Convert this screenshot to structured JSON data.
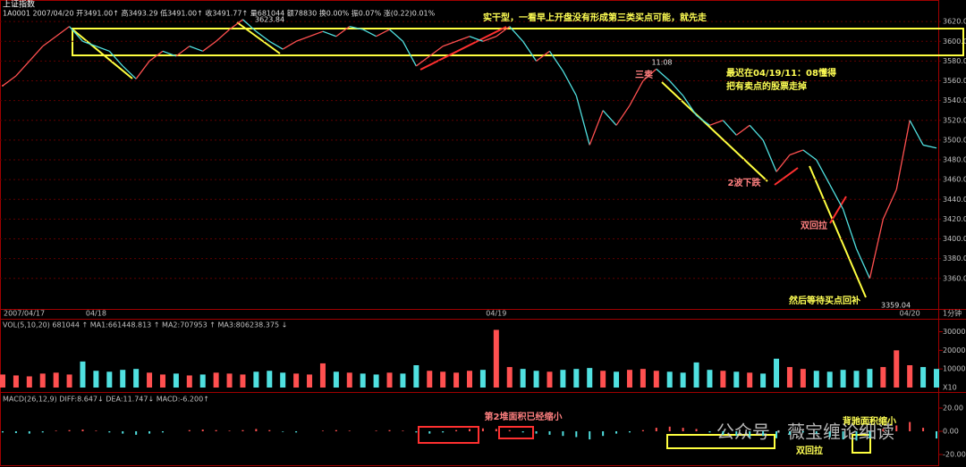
{
  "header": {
    "title": "上证指数",
    "quote": "1A0001 2007/04/20 开3491.00↑ 高3493.29 低3491.00↑ 收3491.77↑ 量681044 额78830 换0.00% 振0.07% 涨(0.22)0.01%"
  },
  "chart_data": [
    {
      "type": "line",
      "period": "1分钟",
      "categories": [
        "2007/04/17",
        null,
        null,
        null,
        null,
        null,
        null,
        "04/18",
        null,
        null,
        null,
        null,
        null,
        null,
        null,
        null,
        null,
        null,
        null,
        null,
        null,
        null,
        null,
        null,
        null,
        null,
        null,
        null,
        null,
        null,
        null,
        null,
        null,
        null,
        null,
        null,
        null,
        "04/19",
        null,
        null,
        null,
        null,
        null,
        null,
        null,
        null,
        null,
        null,
        null,
        null,
        null,
        null,
        null,
        null,
        null,
        null,
        null,
        null,
        null,
        null,
        null,
        null,
        null,
        null,
        null,
        null,
        null,
        null,
        "04/20",
        null,
        null
      ],
      "values": [
        3555,
        3565,
        3580,
        3595,
        3605,
        3615,
        3600,
        3595,
        3590,
        3575,
        3562,
        3580,
        3590,
        3585,
        3595,
        3590,
        3600,
        3612,
        3622,
        3610,
        3600,
        3592,
        3600,
        3605,
        3610,
        3605,
        3615,
        3612,
        3605,
        3612,
        3600,
        3575,
        3585,
        3595,
        3600,
        3605,
        3600,
        3605,
        3615,
        3600,
        3580,
        3590,
        3570,
        3545,
        3495,
        3530,
        3515,
        3535,
        3560,
        3572,
        3560,
        3545,
        3525,
        3515,
        3520,
        3505,
        3515,
        3500,
        3468,
        3485,
        3490,
        3480,
        3455,
        3430,
        3390,
        3360,
        3420,
        3450,
        3520,
        3495,
        3492
      ],
      "up_color": "#ff5050",
      "down_color": "#50e0e0",
      "ylim": [
        3330,
        3640
      ],
      "yticks": [
        {
          "value": 3360,
          "label": "3360.00"
        },
        {
          "value": 3380,
          "label": "3380.00"
        },
        {
          "value": 3400,
          "label": "3400.00"
        },
        {
          "value": 3420,
          "label": "3420.00"
        },
        {
          "value": 3440,
          "label": "3440.00"
        },
        {
          "value": 3460,
          "label": "3460.00"
        },
        {
          "value": 3480,
          "label": "3480.00"
        },
        {
          "value": 3500,
          "label": "3500.00"
        },
        {
          "value": 3520,
          "label": "3520.00"
        },
        {
          "value": 3540,
          "label": "3540.00"
        },
        {
          "value": 3560,
          "label": "3560.00"
        },
        {
          "value": 3580,
          "label": "3580.00"
        },
        {
          "value": 3600,
          "label": "3600.00"
        },
        {
          "value": 3620,
          "label": "3620.00"
        }
      ],
      "grid": true,
      "annotations": [
        "实干型，一看早上开盘没有形成第三类买点可能，就先走",
        "11:08",
        "三卖",
        "最迟在04/19/11：08懂得",
        "把有卖点的股票走掉",
        "2波下跌",
        "双回拉",
        "然后等待买点回补",
        "3623.84",
        "3359.04"
      ]
    },
    {
      "type": "bar",
      "title": "VOL(5,10,20) 681044 ↑ MA1:661448.813 ↑ MA2:707953 ↑ MA3:806238.375 ↓",
      "unit": "X10",
      "values": [
        70000,
        65000,
        60000,
        75000,
        80000,
        70000,
        140000,
        90000,
        85000,
        95000,
        100000,
        80000,
        70000,
        75000,
        65000,
        70000,
        80000,
        75000,
        70000,
        85000,
        90000,
        80000,
        75000,
        70000,
        130000,
        85000,
        80000,
        75000,
        70000,
        80000,
        75000,
        120000,
        90000,
        85000,
        80000,
        90000,
        95000,
        310000,
        110000,
        100000,
        90000,
        85000,
        95000,
        100000,
        105000,
        90000,
        85000,
        95000,
        100000,
        90000,
        85000,
        80000,
        135000,
        95000,
        90000,
        85000,
        80000,
        75000,
        155000,
        110000,
        100000,
        90000,
        85000,
        95000,
        90000,
        100000,
        110000,
        200000,
        120000,
        110000,
        100000
      ],
      "ylim": [
        0,
        360000
      ],
      "yticks": [
        100000,
        200000,
        300000
      ]
    },
    {
      "type": "bar",
      "title": "MACD(26,12,9) DIFF:8.647↓ DEA:11.747↓ MACD:-6.200↑",
      "values": [
        -1,
        -1.5,
        -2,
        -1,
        0.5,
        1,
        1.5,
        0.5,
        -1,
        -2,
        -3,
        -2,
        -1,
        0,
        1,
        1.5,
        1,
        0.5,
        1,
        2,
        1,
        -0.5,
        -1,
        0,
        0.5,
        1,
        0.5,
        0,
        0.5,
        1,
        0.5,
        -1,
        -2,
        -1,
        1,
        2,
        2.5,
        2,
        1,
        -1,
        -2,
        -3,
        -4,
        -5,
        -7,
        -4,
        -2,
        -1,
        1,
        3,
        4,
        3,
        2,
        -1,
        -3,
        -4,
        -5,
        -4,
        -6,
        -3,
        -1,
        -2,
        -5,
        -7,
        -8,
        -6,
        2,
        5,
        8,
        3,
        -6.2
      ],
      "ylim": [
        -30,
        30
      ],
      "yticks": [
        {
          "value": -20,
          "label": "-20.00"
        },
        {
          "value": 0,
          "label": "0.00"
        },
        {
          "value": 20,
          "label": "20.00"
        }
      ],
      "annotations": [
        "第2堆面积已经缩小",
        "双回拉",
        "背驰面积缩小"
      ]
    }
  ],
  "watermark": "公众号 · 薇宝缠论细读"
}
